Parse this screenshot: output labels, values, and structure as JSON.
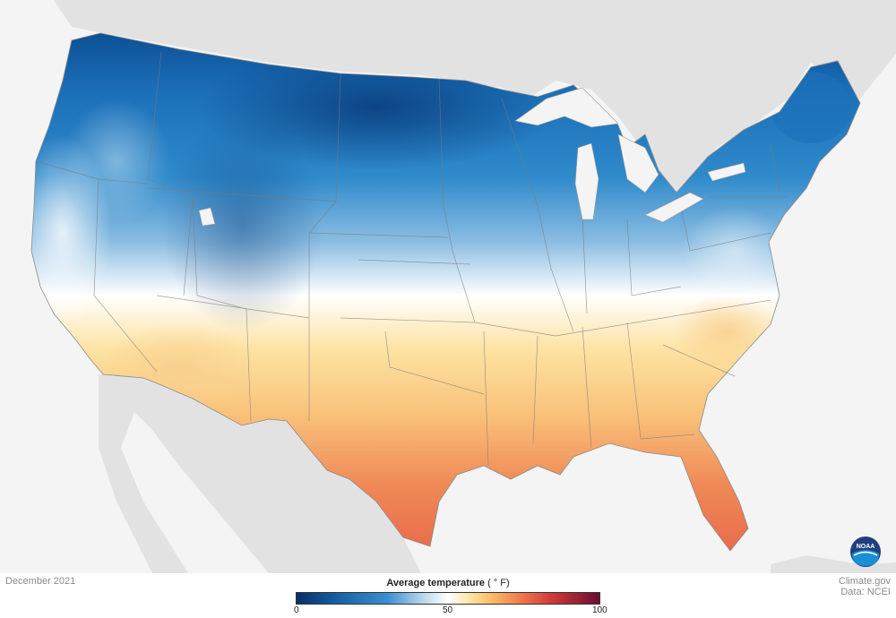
{
  "footer": {
    "date": "December 2021",
    "source_line1": "Climate.gov",
    "source_line2": "Data: NCEI"
  },
  "legend": {
    "title": "Average temperature",
    "unit": "( ° F)",
    "ticks": [
      "0",
      "50",
      "100"
    ],
    "range": [
      0,
      100
    ]
  },
  "logo": {
    "text": "NOAA"
  },
  "colors": {
    "cold": "#08306b",
    "cool": "#3a8fd0",
    "neutral": "#ffffff",
    "warm": "#f8bf6a",
    "hot": "#ef7a4c",
    "extreme": "#6b0d2f",
    "land_outside": "#e2e2e2",
    "water": "#f4f4f4"
  }
}
